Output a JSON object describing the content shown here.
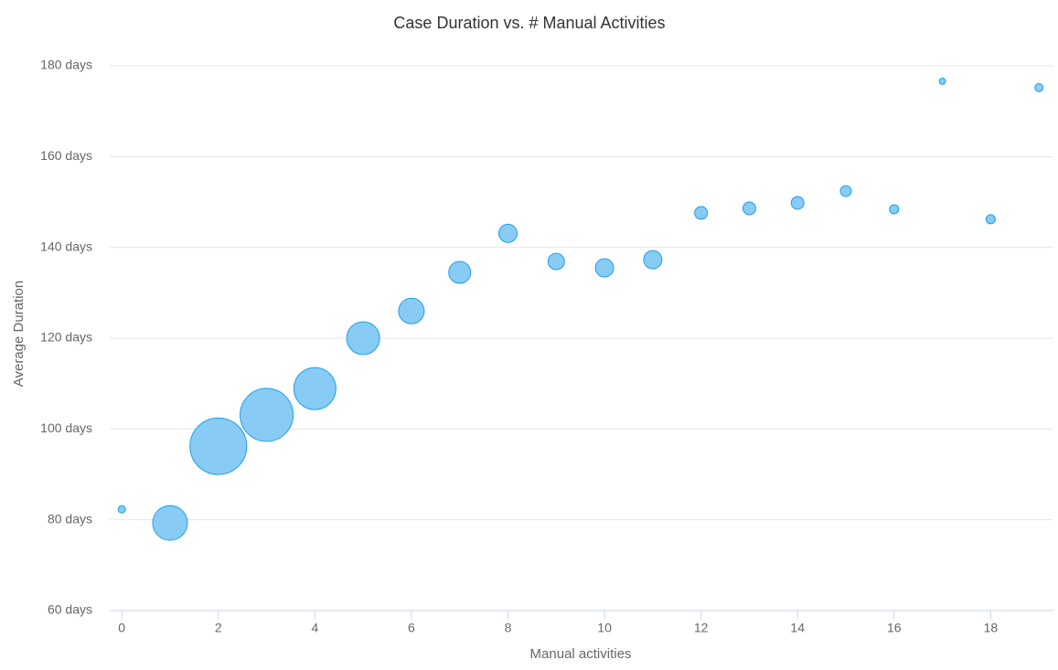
{
  "chart_data": {
    "type": "bubble",
    "title": "Case Duration vs. # Manual Activities",
    "x_label": "Manual activities",
    "y_label": "Average Duration",
    "x": [
      0,
      1,
      2,
      3,
      4,
      5,
      6,
      7,
      8,
      9,
      10,
      11,
      12,
      13,
      14,
      15,
      16,
      17,
      18,
      19
    ],
    "values": [
      82.3,
      79.3,
      96.2,
      103.1,
      108.9,
      120,
      126.0,
      134.5,
      143.1,
      136.9,
      135.5,
      137.3,
      147.6,
      148.6,
      149.8,
      152.4,
      148.4,
      176.6,
      146.2,
      175.2
    ],
    "sizes": [
      16,
      361,
      961,
      841,
      529,
      324,
      196,
      144,
      100,
      81,
      100,
      100,
      49,
      49,
      49,
      36,
      25,
      12,
      25,
      20
    ],
    "color": "#88cbf4",
    "edge_color": "#1ea1e6",
    "xlim": [
      -0.25,
      19.3
    ],
    "ylim": [
      60,
      180
    ],
    "xticks": [
      0,
      2,
      4,
      6,
      8,
      10,
      12,
      14,
      16,
      18
    ],
    "yticks": [
      {
        "value": 60,
        "label": "60 days"
      },
      {
        "value": 80,
        "label": "80 days"
      },
      {
        "value": 100,
        "label": "100 days"
      },
      {
        "value": 120,
        "label": "120 days"
      },
      {
        "value": 140,
        "label": "140 days"
      },
      {
        "value": 160,
        "label": "160 days"
      },
      {
        "value": 180,
        "label": "180 days"
      }
    ],
    "grid": true
  }
}
